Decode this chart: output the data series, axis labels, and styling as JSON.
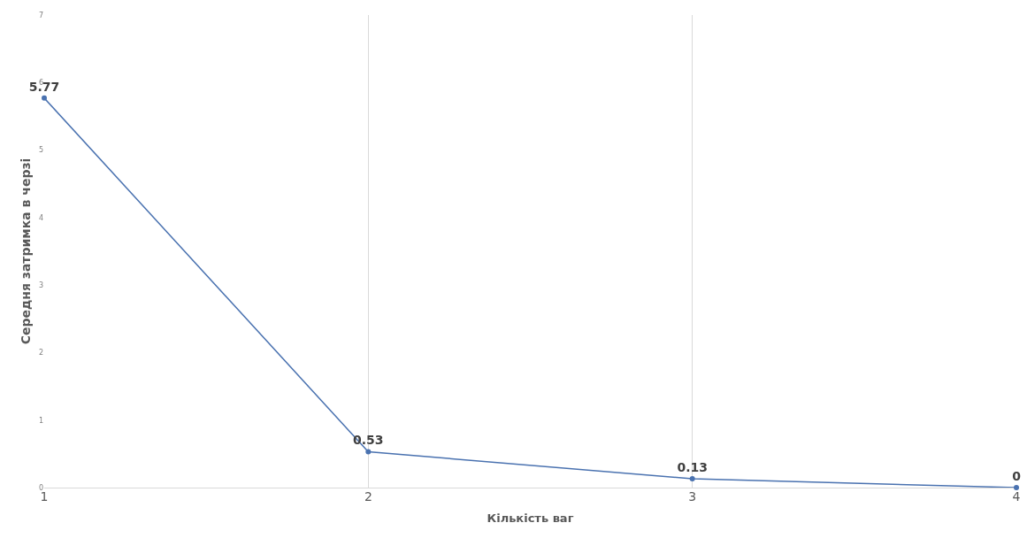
{
  "chart_data": {
    "type": "line",
    "xlabel": "Кількість ваг",
    "ylabel": "Середня затримка в черзі",
    "x": [
      1,
      2,
      3,
      4
    ],
    "series": [
      {
        "color": "#4a72b0",
        "values": [
          5.77,
          0.53,
          0.13,
          0
        ]
      }
    ],
    "xlim": [
      1,
      4
    ],
    "xticks": [
      1,
      2,
      3,
      4
    ],
    "ylim": [
      0,
      7
    ],
    "yticks": [
      0,
      1,
      2,
      3,
      4,
      5,
      6,
      7
    ],
    "grid": "x",
    "marker": "circle",
    "line_style": "solid",
    "data_labels": true,
    "legend": false
  }
}
